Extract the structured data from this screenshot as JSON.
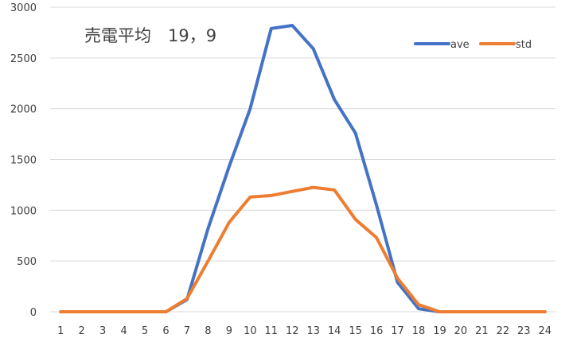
{
  "chart_data": {
    "type": "line",
    "title": "売電平均　19，9",
    "xlabel": "",
    "ylabel": "",
    "categories": [
      "1",
      "2",
      "3",
      "4",
      "5",
      "6",
      "7",
      "8",
      "9",
      "10",
      "11",
      "12",
      "13",
      "14",
      "15",
      "16",
      "17",
      "18",
      "19",
      "20",
      "21",
      "22",
      "23",
      "24"
    ],
    "ylim": [
      0,
      3000
    ],
    "yticks": [
      0,
      500,
      1000,
      1500,
      2000,
      2500,
      3000
    ],
    "grid": true,
    "legend_position": "top-right",
    "series": [
      {
        "name": "ave",
        "color": "#4472c4",
        "values": [
          0,
          0,
          0,
          0,
          0,
          0,
          120,
          820,
          1430,
          2000,
          2790,
          2820,
          2590,
          2090,
          1760,
          1050,
          290,
          30,
          0,
          0,
          0,
          0,
          0,
          0
        ]
      },
      {
        "name": "std",
        "color": "#ed7d31",
        "values": [
          0,
          0,
          0,
          0,
          0,
          0,
          130,
          500,
          880,
          1130,
          1145,
          1185,
          1225,
          1200,
          910,
          730,
          330,
          70,
          0,
          0,
          0,
          0,
          0,
          0
        ]
      }
    ]
  },
  "colors": {
    "grid": "#d9d9d9",
    "text": "#404040",
    "background": "#ffffff"
  }
}
